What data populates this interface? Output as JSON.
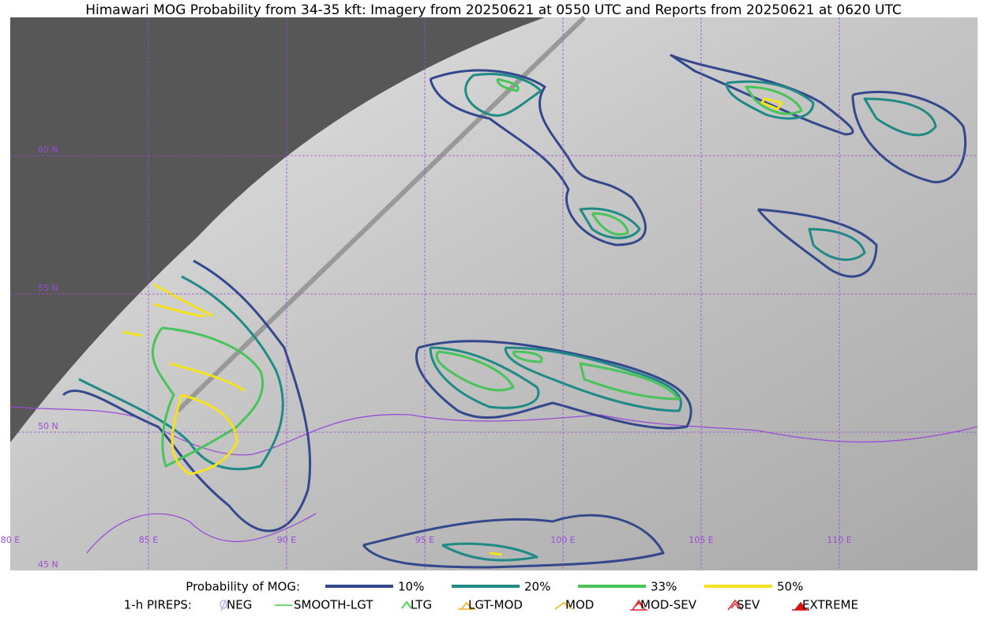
{
  "title": "Himawari MOG Probability from 34-35 kft: Imagery from 20250621 at 0550 UTC and Reports from 20250621 at 0620 UTC",
  "map": {
    "lat_labels": [
      "60 N",
      "55 N",
      "50 N",
      "45 N"
    ],
    "lon_labels": [
      "80 E",
      "85 E",
      "90 E",
      "95 E",
      "100 E",
      "105 E",
      "110 E"
    ]
  },
  "legend": {
    "probability": {
      "label": "Probability of MOG:",
      "items": [
        {
          "label": "10%",
          "color": "#34488c"
        },
        {
          "label": "20%",
          "color": "#1f8a86"
        },
        {
          "label": "33%",
          "color": "#48c45a"
        },
        {
          "label": "50%",
          "color": "#f5e21e"
        }
      ]
    },
    "pireps": {
      "label": "1-h PIREPS:",
      "items": [
        {
          "label": "NEG",
          "color": "#b8b8f0"
        },
        {
          "label": "SMOOTH-LGT",
          "color": "#3ed03e"
        },
        {
          "label": "LTG",
          "color": "#22dd22"
        },
        {
          "label": "LGT-MOD",
          "color": "#f0b020"
        },
        {
          "label": "MOD",
          "color": "#f0b020"
        },
        {
          "label": "MOD-SEV",
          "color": "#e03030"
        },
        {
          "label": "SEV",
          "color": "#e03030"
        },
        {
          "label": "EXTREME",
          "color": "#e01010"
        }
      ]
    }
  }
}
